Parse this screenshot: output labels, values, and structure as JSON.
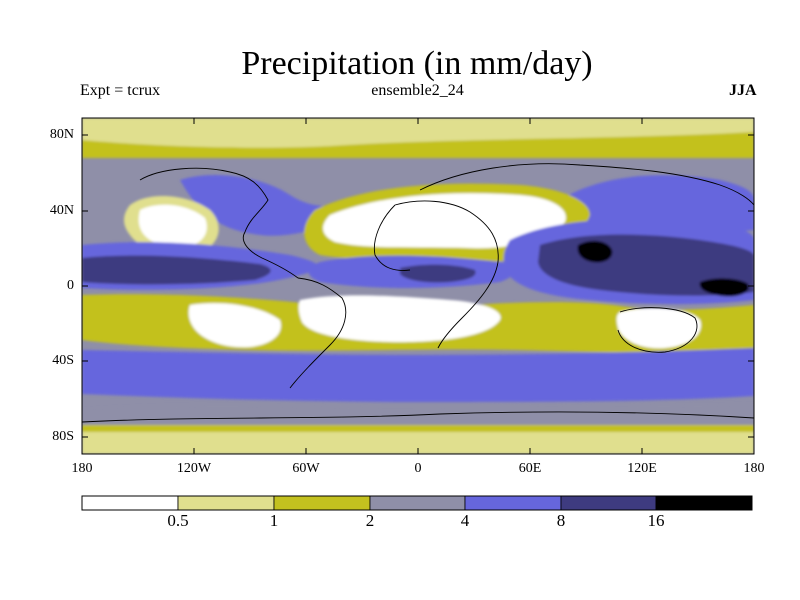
{
  "title": "Precipitation (in mm/day)",
  "subtitle_left": "Expt = tcrux",
  "subtitle_center": "ensemble2_24",
  "subtitle_right": "JJA",
  "lat_ticks": [
    "80N",
    "40N",
    "0",
    "40S",
    "80S"
  ],
  "lon_ticks": [
    "180",
    "120W",
    "60W",
    "0",
    "60E",
    "120E",
    "180"
  ],
  "colorbar": {
    "thresholds": [
      "0.5",
      "1",
      "2",
      "4",
      "8",
      "16"
    ],
    "colors": [
      "#ffffff",
      "#e0df8e",
      "#c3c11f",
      "#8f8fa8",
      "#6666dd",
      "#3e3b80",
      "#000000"
    ]
  }
}
